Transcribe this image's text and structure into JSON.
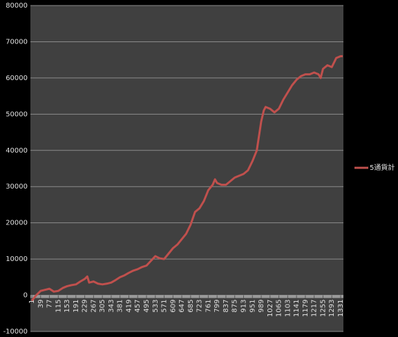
{
  "chart_data": {
    "type": "line",
    "series": [
      {
        "name": "5通貨計",
        "color": "#c0504d",
        "x": [
          1,
          20,
          39,
          58,
          77,
          96,
          115,
          134,
          153,
          172,
          191,
          210,
          229,
          240,
          248,
          267,
          286,
          305,
          324,
          343,
          362,
          381,
          400,
          419,
          438,
          457,
          476,
          495,
          514,
          533,
          552,
          571,
          590,
          609,
          628,
          647,
          666,
          685,
          704,
          723,
          742,
          761,
          780,
          790,
          799,
          818,
          837,
          856,
          875,
          894,
          913,
          932,
          951,
          970,
          989,
          1000,
          1008,
          1027,
          1046,
          1065,
          1084,
          1103,
          1122,
          1141,
          1160,
          1179,
          1198,
          1217,
          1236,
          1245,
          1255,
          1274,
          1293,
          1312,
          1331,
          1340
        ],
        "values": [
          -1500,
          0,
          1200,
          1500,
          1800,
          1000,
          1200,
          2000,
          2500,
          2800,
          3000,
          3800,
          4500,
          5200,
          3500,
          3800,
          3200,
          3000,
          3200,
          3500,
          4200,
          5000,
          5500,
          6200,
          6800,
          7200,
          7800,
          8200,
          9500,
          10800,
          10200,
          10000,
          11500,
          13000,
          14000,
          15500,
          17000,
          19500,
          23000,
          24000,
          26000,
          29000,
          30500,
          32000,
          31000,
          30500,
          30500,
          31500,
          32500,
          33000,
          33500,
          34500,
          37000,
          40000,
          48000,
          51000,
          52000,
          51500,
          50500,
          51500,
          54000,
          56000,
          58000,
          59500,
          60500,
          61000,
          61000,
          61500,
          61000,
          60000,
          62500,
          63500,
          63000,
          65500,
          66000,
          66000
        ]
      }
    ],
    "xlim": [
      1,
      1340
    ],
    "xticks": [
      1,
      39,
      77,
      115,
      153,
      191,
      229,
      267,
      305,
      343,
      381,
      419,
      457,
      495,
      533,
      571,
      609,
      647,
      685,
      723,
      761,
      799,
      837,
      875,
      913,
      951,
      989,
      1027,
      1065,
      1103,
      1141,
      1179,
      1217,
      1255,
      1293,
      1331
    ],
    "ylim": [
      -10000,
      80000
    ],
    "yticks": [
      -10000,
      0,
      10000,
      20000,
      30000,
      40000,
      50000,
      60000,
      70000,
      80000
    ],
    "grid": true
  }
}
